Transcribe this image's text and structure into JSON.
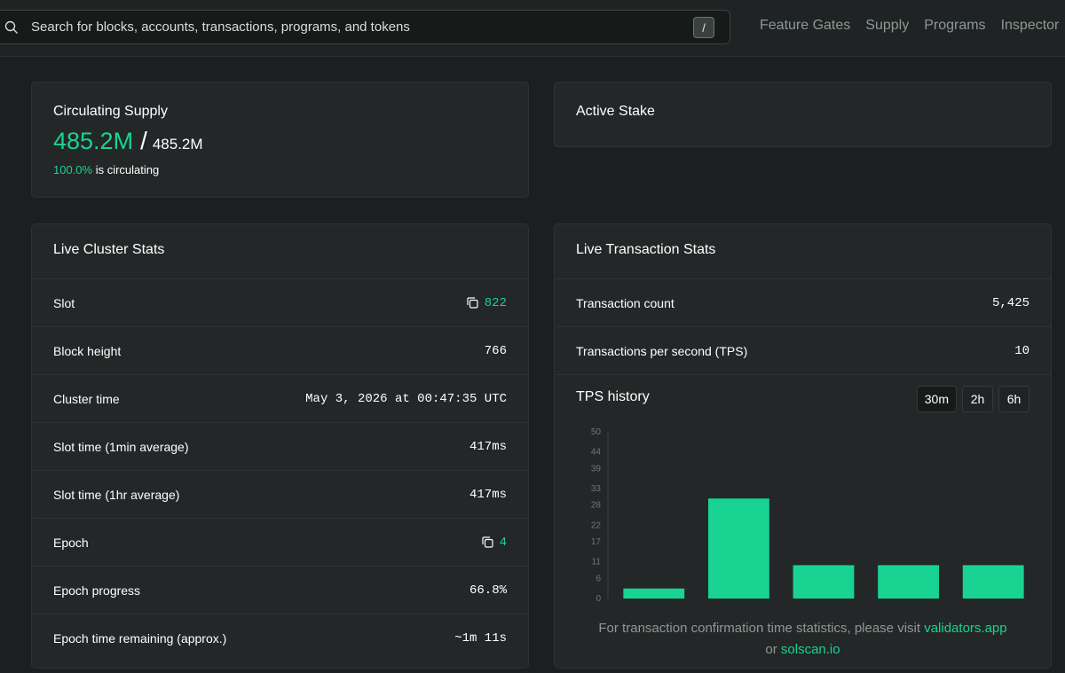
{
  "search": {
    "placeholder": "Search for blocks, accounts, transactions, programs, and tokens",
    "shortcut": "/"
  },
  "nav": [
    "Feature Gates",
    "Supply",
    "Programs",
    "Inspector"
  ],
  "supply": {
    "title": "Circulating Supply",
    "circulating": "485.2M",
    "total": "485.2M",
    "percent": "100.0%",
    "suffix": "is circulating"
  },
  "stake": {
    "title": "Active Stake"
  },
  "cluster": {
    "title": "Live Cluster Stats",
    "rows": [
      {
        "label": "Slot",
        "value": "822",
        "link": true
      },
      {
        "label": "Block height",
        "value": "766"
      },
      {
        "label": "Cluster time",
        "value": "May 3, 2026 at 00:47:35 UTC"
      },
      {
        "label": "Slot time (1min average)",
        "value": "417ms"
      },
      {
        "label": "Slot time (1hr average)",
        "value": "417ms"
      },
      {
        "label": "Epoch",
        "value": "4",
        "link": true
      },
      {
        "label": "Epoch progress",
        "value": "66.8%"
      },
      {
        "label": "Epoch time remaining (approx.)",
        "value": "~1m 11s"
      }
    ]
  },
  "tx": {
    "title": "Live Transaction Stats",
    "rows": [
      {
        "label": "Transaction count",
        "value": "5,425"
      },
      {
        "label": "Transactions per second (TPS)",
        "value": "10"
      }
    ],
    "history_title": "TPS history",
    "ranges": [
      "30m",
      "2h",
      "6h"
    ],
    "active_range": "30m",
    "footnote_pre": "For transaction confirmation time statistics, please visit",
    "link1": "validators.app",
    "footnote_mid": "or",
    "link2": "solscan.io"
  },
  "colors": {
    "accent": "#19d393",
    "bg": "#1c1f1f",
    "card": "#232727"
  },
  "chart_data": {
    "type": "bar",
    "categories": [
      "",
      "",
      "",
      "",
      ""
    ],
    "values": [
      3,
      30,
      10,
      10,
      10
    ],
    "ylim": [
      0,
      50
    ],
    "yticks": [
      "50",
      "44",
      "39",
      "33",
      "28",
      "22",
      "17",
      "11",
      "6",
      "0"
    ],
    "title": "",
    "xlabel": "",
    "ylabel": "",
    "grid": false,
    "bar_color": "#19d393"
  }
}
